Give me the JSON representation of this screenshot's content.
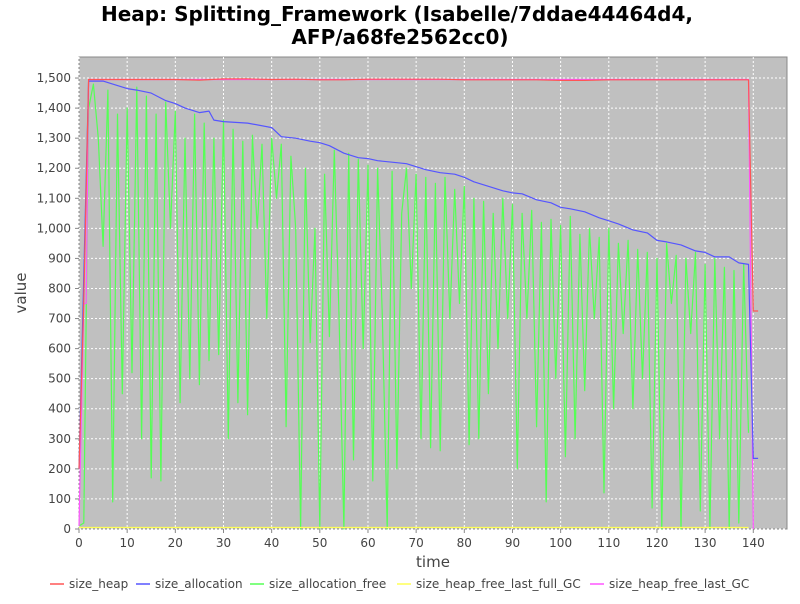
{
  "chart_data": {
    "type": "line",
    "title": [
      "Heap: Splitting_Framework (Isabelle/7ddae44464d4,",
      "AFP/a68fe2562cc0)"
    ],
    "xlabel": "time",
    "ylabel": "value",
    "xlim": [
      0,
      147
    ],
    "ylim": [
      0,
      1570
    ],
    "x_ticks": [
      0,
      10,
      20,
      30,
      40,
      50,
      60,
      70,
      80,
      90,
      100,
      110,
      120,
      130,
      140
    ],
    "y_ticks": [
      0,
      100,
      200,
      300,
      400,
      500,
      600,
      700,
      800,
      900,
      1000,
      1100,
      1200,
      1300,
      1400,
      1500
    ],
    "y_tick_labels": [
      "0",
      "100",
      "200",
      "300",
      "400",
      "500",
      "600",
      "700",
      "800",
      "900",
      "1,000",
      "1,100",
      "1,200",
      "1,300",
      "1,400",
      "1,500"
    ],
    "background": "#c0c0c0",
    "grid": true,
    "legend_position": "bottom",
    "series": [
      {
        "name": "size_heap",
        "color": "#ff5555",
        "x": [
          0,
          1,
          2,
          5,
          10,
          15,
          20,
          25,
          30,
          35,
          40,
          45,
          50,
          55,
          60,
          65,
          70,
          75,
          80,
          85,
          90,
          95,
          100,
          105,
          110,
          115,
          120,
          125,
          130,
          135,
          139,
          140,
          141
        ],
        "y": [
          200,
          760,
          1495,
          1495,
          1495,
          1495,
          1495,
          1493,
          1497,
          1497,
          1495,
          1496,
          1494,
          1494,
          1496,
          1496,
          1496,
          1496,
          1494,
          1494,
          1494,
          1494,
          1492,
          1492,
          1494,
          1494,
          1494,
          1494,
          1494,
          1494,
          1494,
          725,
          725
        ]
      },
      {
        "name": "size_allocation",
        "color": "#5555ff",
        "x": [
          0,
          2,
          5,
          8,
          10,
          12,
          15,
          18,
          20,
          22,
          25,
          27,
          28,
          30,
          35,
          40,
          42,
          45,
          48,
          50,
          52,
          55,
          58,
          60,
          62,
          65,
          68,
          70,
          72,
          75,
          78,
          80,
          82,
          85,
          88,
          90,
          92,
          95,
          98,
          100,
          102,
          105,
          108,
          110,
          112,
          115,
          118,
          120,
          122,
          125,
          128,
          130,
          132,
          135,
          137,
          139,
          140,
          141
        ],
        "y": [
          200,
          1490,
          1490,
          1475,
          1465,
          1460,
          1450,
          1425,
          1415,
          1400,
          1385,
          1390,
          1360,
          1355,
          1350,
          1335,
          1305,
          1300,
          1290,
          1285,
          1275,
          1250,
          1235,
          1232,
          1225,
          1220,
          1215,
          1205,
          1195,
          1185,
          1180,
          1170,
          1155,
          1140,
          1125,
          1118,
          1115,
          1095,
          1085,
          1070,
          1065,
          1055,
          1035,
          1025,
          1015,
          995,
          985,
          960,
          955,
          945,
          925,
          920,
          905,
          905,
          885,
          880,
          235,
          235
        ]
      },
      {
        "name": "size_allocation_free",
        "color": "#55ff55",
        "x": [
          0,
          1,
          2,
          3,
          4,
          5,
          6,
          7,
          8,
          9,
          10,
          11,
          12,
          13,
          14,
          15,
          16,
          17,
          18,
          19,
          20,
          21,
          22,
          23,
          24,
          25,
          26,
          27,
          28,
          29,
          30,
          31,
          32,
          33,
          34,
          35,
          36,
          37,
          38,
          39,
          40,
          41,
          42,
          43,
          44,
          45,
          46,
          47,
          48,
          49,
          50,
          51,
          52,
          53,
          54,
          55,
          56,
          57,
          58,
          59,
          60,
          61,
          62,
          63,
          64,
          65,
          66,
          67,
          68,
          69,
          70,
          71,
          72,
          73,
          74,
          75,
          76,
          77,
          78,
          79,
          80,
          81,
          82,
          83,
          84,
          85,
          86,
          87,
          88,
          89,
          90,
          91,
          92,
          93,
          94,
          95,
          96,
          97,
          98,
          99,
          100,
          101,
          102,
          103,
          104,
          105,
          106,
          107,
          108,
          109,
          110,
          111,
          112,
          113,
          114,
          115,
          116,
          117,
          118,
          119,
          120,
          121,
          122,
          123,
          124,
          125,
          126,
          127,
          128,
          129,
          130,
          131,
          132,
          133,
          134,
          135,
          136,
          137,
          138,
          139
        ],
        "y": [
          10,
          20,
          1400,
          1480,
          1300,
          940,
          1460,
          90,
          1380,
          450,
          1400,
          520,
          1470,
          300,
          1440,
          170,
          1380,
          160,
          1420,
          1000,
          1390,
          420,
          1300,
          500,
          1380,
          480,
          1350,
          560,
          1300,
          580,
          1360,
          300,
          1330,
          420,
          1290,
          380,
          1310,
          1000,
          1280,
          700,
          1300,
          1100,
          1280,
          340,
          1240,
          1000,
          0,
          1200,
          620,
          1000,
          0,
          1180,
          640,
          1260,
          700,
          0,
          1250,
          230,
          1230,
          600,
          1210,
          160,
          1200,
          700,
          0,
          1190,
          200,
          1050,
          1200,
          800,
          1180,
          300,
          1170,
          270,
          1150,
          260,
          1170,
          700,
          1130,
          750,
          1140,
          280,
          1100,
          300,
          1090,
          450,
          1050,
          600,
          1100,
          700,
          1080,
          200,
          1050,
          700,
          1060,
          340,
          1020,
          90,
          1030,
          500,
          1010,
          240,
          1040,
          300,
          980,
          460,
          1000,
          700,
          970,
          120,
          1000,
          400,
          950,
          650,
          960,
          400,
          930,
          500,
          920,
          70,
          900,
          0,
          950,
          750,
          910,
          0,
          900,
          650,
          920,
          60,
          880,
          0,
          900,
          300,
          870,
          0,
          860,
          20,
          880,
          320
        ]
      },
      {
        "name": "size_heap_free_last_full_GC",
        "color": "#ffff55",
        "x": [
          0,
          139
        ],
        "y": [
          5,
          5
        ]
      },
      {
        "name": "size_heap_free_last_GC",
        "color": "#ff55ff",
        "x": [
          0,
          1,
          1.5,
          2,
          3,
          139,
          140
        ],
        "y": [
          10,
          750,
          750,
          1495,
          1495,
          1495,
          0
        ]
      }
    ]
  }
}
